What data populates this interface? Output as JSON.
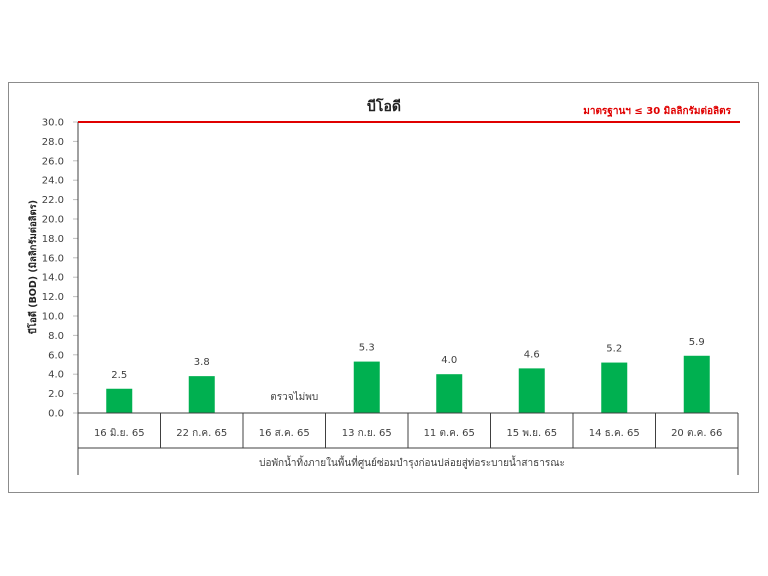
{
  "chart_data": {
    "type": "bar",
    "title": "บีโอดี",
    "ylabel": "บีโอดี (BOD) (มิลลิกรัมต่อลิตร)",
    "xlabel": "บ่อพักน้ำทิ้งภายในพื้นที่ศูนย์ซ่อมบำรุงก่อนปล่อยสู่ท่อระบายน้ำสาธารณะ",
    "ylim": [
      0,
      30
    ],
    "ytick_step": 2,
    "ytick_labels": [
      "0.0",
      "2.0",
      "4.0",
      "6.0",
      "8.0",
      "10.0",
      "12.0",
      "14.0",
      "16.0",
      "18.0",
      "20.0",
      "22.0",
      "24.0",
      "26.0",
      "28.0",
      "30.0"
    ],
    "categories": [
      "16 มิ.ย. 65",
      "22 ก.ค. 65",
      "16 ส.ค. 65",
      "13 ก.ย. 65",
      "11 ต.ค. 65",
      "15 พ.ย. 65",
      "14 ธ.ค. 65",
      "20 ต.ค. 66"
    ],
    "values": [
      2.5,
      3.8,
      null,
      5.3,
      4.0,
      4.6,
      5.2,
      5.9
    ],
    "value_labels": [
      "2.5",
      "3.8",
      "ตรวจไม่พบ",
      "5.3",
      "4.0",
      "4.6",
      "5.2",
      "5.9"
    ],
    "bar_color": "#00b050",
    "standard_line": {
      "value": 30,
      "label": "มาตรฐานฯ ≤ 30 มิลลิกรัมต่อลิตร",
      "color": "#e00000"
    },
    "grid": false,
    "legend": "none"
  }
}
